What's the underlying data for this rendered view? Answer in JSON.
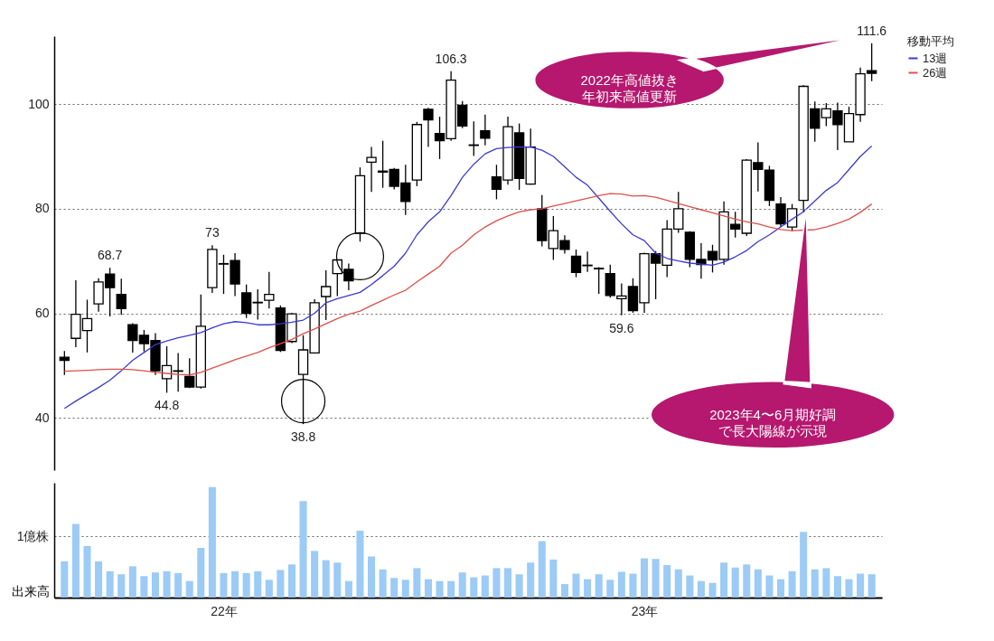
{
  "chart_data": [
    {
      "type": "candlestick",
      "categories": [
        null,
        null,
        null,
        null,
        null,
        null,
        null,
        null,
        null,
        null,
        null,
        null,
        null,
        null,
        null,
        null,
        null,
        null,
        null,
        null,
        null,
        null,
        null,
        null,
        null,
        null,
        null,
        null,
        null,
        null,
        null,
        null,
        null,
        null,
        null,
        null,
        null,
        null,
        null,
        null,
        null,
        null,
        null,
        null,
        null,
        null,
        null,
        null,
        null,
        null,
        null,
        null,
        null,
        null,
        null,
        null,
        null,
        null,
        null,
        null,
        null,
        null,
        null,
        null,
        null,
        null,
        null,
        null,
        null,
        null,
        null,
        null
      ],
      "tick_labels": "y",
      "ylim": [
        30,
        113
      ],
      "yticks": [
        40,
        60,
        80,
        100
      ],
      "grid": "y",
      "legend": "right",
      "legend_title": "移動平均",
      "ohlc": [
        [
          51.6,
          52.8,
          48.2,
          51.0
        ],
        [
          55.2,
          66.3,
          53.5,
          59.8
        ],
        [
          56.7,
          62.6,
          52.5,
          59.0
        ],
        [
          61.8,
          66.7,
          60.3,
          66.0
        ],
        [
          67.5,
          68.7,
          59.4,
          64.9
        ],
        [
          63.6,
          66.6,
          59.7,
          60.9
        ],
        [
          57.8,
          58.1,
          52.5,
          54.8
        ],
        [
          55.8,
          56.8,
          52.7,
          54.2
        ],
        [
          54.8,
          56.2,
          48.2,
          49.0
        ],
        [
          47.5,
          53.7,
          44.8,
          50.0
        ],
        [
          48.9,
          52.4,
          45.0,
          49.0
        ],
        [
          47.9,
          51.4,
          45.7,
          45.9
        ],
        [
          45.9,
          63.6,
          45.6,
          57.5
        ],
        [
          64.9,
          73,
          63.9,
          72.2
        ],
        [
          69.4,
          71.2,
          63.7,
          69.5
        ],
        [
          70.1,
          71.5,
          63.3,
          65.6
        ],
        [
          63.9,
          65.5,
          59.1,
          60.0
        ],
        [
          62.0,
          64.6,
          58.8,
          62.1
        ],
        [
          62.5,
          67.9,
          60.9,
          63.6
        ],
        [
          61.0,
          61.5,
          52.6,
          52.9
        ],
        [
          54.6,
          60.1,
          54.3,
          59.9
        ],
        [
          48.3,
          55.8,
          38.8,
          53.0
        ],
        [
          52.4,
          62.7,
          52.3,
          62.0
        ],
        [
          63.2,
          68.2,
          58.7,
          65.1
        ],
        [
          67.6,
          70.3,
          63.3,
          70.2
        ],
        [
          68.4,
          69.5,
          64.4,
          66.2
        ],
        [
          75.3,
          87.9,
          73.7,
          86.3
        ],
        [
          88.9,
          91.8,
          83.2,
          89.8
        ],
        [
          87.2,
          93.0,
          84.0,
          87.0
        ],
        [
          87.5,
          87.8,
          83.7,
          84.3
        ],
        [
          84.9,
          88.4,
          78.8,
          81.4
        ],
        [
          85.5,
          96.6,
          84.3,
          96.1
        ],
        [
          99.0,
          99.3,
          91.8,
          97.0
        ],
        [
          94.4,
          97.6,
          89.5,
          93.0
        ],
        [
          93.4,
          106.3,
          93.0,
          104.6
        ],
        [
          99.8,
          100.6,
          95.4,
          95.8
        ],
        [
          92.2,
          96.7,
          90.1,
          92.1
        ],
        [
          94.9,
          98.0,
          92.1,
          93.5
        ],
        [
          86.1,
          88.4,
          81.8,
          83.7
        ],
        [
          85.5,
          97.6,
          84.6,
          95.7
        ],
        [
          94.5,
          96.3,
          83.6,
          85.8
        ],
        [
          84.7,
          95.3,
          84.6,
          91.8
        ],
        [
          80.0,
          82.6,
          72.8,
          73.9
        ],
        [
          72.4,
          78.6,
          70.2,
          75.8
        ],
        [
          73.9,
          74.9,
          71.4,
          72.2
        ],
        [
          70.9,
          72.2,
          66.9,
          67.8
        ],
        [
          69.1,
          71.8,
          67.9,
          69.2
        ],
        [
          68.6,
          68.8,
          63.7,
          68.5
        ],
        [
          67.6,
          69.3,
          63.0,
          63.4
        ],
        [
          62.8,
          65.7,
          59.6,
          63.3
        ],
        [
          65.1,
          66.7,
          60.1,
          60.5
        ],
        [
          62.0,
          71.6,
          60.1,
          71.4
        ],
        [
          71.4,
          71.9,
          62.7,
          69.6
        ],
        [
          69.2,
          77.8,
          66.9,
          76.1
        ],
        [
          76.1,
          83.2,
          75.4,
          80.0
        ],
        [
          75.5,
          75.7,
          68.8,
          70.3
        ],
        [
          70.3,
          73.4,
          66.6,
          69.3
        ],
        [
          71.8,
          73.1,
          67.8,
          70.2
        ],
        [
          70.3,
          81.4,
          69.3,
          79.4
        ],
        [
          77.0,
          79.4,
          74.5,
          76.1
        ],
        [
          75.3,
          89.5,
          74.8,
          89.3
        ],
        [
          88.8,
          92.7,
          83.3,
          87.5
        ],
        [
          87.4,
          88.2,
          80.5,
          81.6
        ],
        [
          80.9,
          82.2,
          76.5,
          77.1
        ],
        [
          76.5,
          80.9,
          75.7,
          80.0
        ],
        [
          81.6,
          103.6,
          79.3,
          103.4
        ],
        [
          99.1,
          100.5,
          92.8,
          95.4
        ],
        [
          97.4,
          100.2,
          95.8,
          99.1
        ],
        [
          98.7,
          100.3,
          91.2,
          96.1
        ],
        [
          92.8,
          99.5,
          92.8,
          98.2
        ],
        [
          98.0,
          107.0,
          96.6,
          105.8
        ],
        [
          106.4,
          111.6,
          104.4,
          105.9
        ]
      ],
      "series": [
        {
          "name": "13週",
          "type": "line",
          "color": "#3a3ad6",
          "values": [
            41.8,
            43.2,
            44.5,
            45.8,
            47.2,
            49.0,
            51.0,
            52.5,
            54.0,
            54.7,
            55.3,
            55.8,
            56.3,
            57.2,
            58.0,
            58.4,
            58.2,
            57.8,
            57.8,
            58.0,
            58.3,
            58.7,
            60.0,
            62.0,
            62.8,
            63.4,
            64.0,
            65.5,
            67.2,
            69.0,
            71.5,
            75.0,
            77.5,
            79.4,
            82.5,
            86.0,
            88.5,
            90.5,
            91.5,
            91.7,
            91.8,
            91.8,
            91.2,
            90.0,
            88.0,
            86.0,
            84.5,
            82.0,
            79.5,
            77.1,
            75.0,
            73.9,
            71.5,
            70.5,
            70.0,
            69.6,
            69.4,
            69.2,
            69.8,
            70.8,
            72.0,
            73.7,
            75.0,
            76.5,
            78.0,
            79.4,
            81.5,
            83.5,
            85.0,
            87.5,
            90.0,
            92.0
          ]
        },
        {
          "name": "26週",
          "type": "line",
          "color": "#e0504a",
          "values": [
            48.9,
            49.0,
            49.1,
            49.2,
            49.3,
            49.3,
            49.2,
            49.0,
            48.7,
            48.5,
            48.3,
            48.2,
            48.7,
            49.5,
            50.3,
            51.1,
            51.8,
            52.5,
            53.4,
            54.2,
            55.0,
            56.1,
            57.0,
            58.0,
            59.0,
            59.8,
            60.4,
            61.5,
            62.5,
            63.5,
            64.4,
            66.0,
            67.5,
            69.0,
            71.5,
            73.0,
            75.0,
            76.5,
            77.7,
            78.6,
            79.4,
            79.8,
            80.0,
            80.5,
            81.0,
            81.5,
            82.0,
            82.5,
            82.9,
            82.8,
            82.4,
            82.5,
            82.2,
            81.6,
            81.0,
            80.4,
            79.8,
            79.2,
            78.6,
            78.0,
            77.5,
            77.1,
            76.5,
            76.0,
            75.8,
            null,
            76.0,
            76.5,
            77.2,
            78.0,
            79.3,
            80.9
          ]
        }
      ],
      "annotations": [
        {
          "text": "68.7",
          "y": 68.7
        },
        {
          "text": "73",
          "y": 73
        },
        {
          "text": "44.8",
          "y": 44.8
        },
        {
          "text": "38.8",
          "y": 38.8
        },
        {
          "text": "106.3",
          "y": 106.3
        },
        {
          "text": "59.6",
          "y": 59.6
        },
        {
          "text": "111.6",
          "y": 111.6
        },
        "2022年高値抜き年初来高値更新",
        "2023年4〜6月期好調で長大陽線が示現"
      ]
    },
    {
      "type": "bar",
      "categories": [
        null,
        null,
        null,
        null,
        null,
        null,
        null,
        null,
        null,
        null,
        null,
        null,
        null,
        null,
        "22年",
        null,
        null,
        null,
        null,
        null,
        null,
        null,
        null,
        null,
        null,
        null,
        null,
        null,
        null,
        null,
        null,
        null,
        null,
        null,
        null,
        null,
        null,
        null,
        null,
        null,
        null,
        null,
        null,
        null,
        null,
        null,
        null,
        null,
        null,
        null,
        null,
        "23年",
        null,
        null,
        null,
        null,
        null,
        null,
        null,
        null,
        null,
        null,
        null,
        null,
        null,
        null,
        null,
        null,
        null,
        null,
        null,
        null
      ],
      "ylabel": "出来高",
      "ylim": [
        0,
        1.87
      ],
      "yticks": [
        {
          "value": 0,
          "label": null
        },
        {
          "value": 1,
          "label": "1億株"
        }
      ],
      "grid": "y",
      "color": "#9ccbf5",
      "values": [
        0.59,
        1.2,
        0.84,
        0.59,
        0.43,
        0.38,
        0.51,
        0.35,
        0.41,
        0.43,
        0.4,
        0.27,
        0.81,
        1.8,
        0.4,
        0.43,
        0.4,
        0.43,
        0.29,
        0.45,
        0.54,
        1.57,
        0.76,
        0.61,
        0.57,
        0.27,
        1.09,
        0.67,
        0.46,
        0.32,
        0.29,
        0.48,
        0.3,
        0.27,
        0.27,
        0.41,
        0.33,
        0.36,
        0.48,
        0.48,
        0.38,
        0.57,
        0.92,
        0.62,
        0.22,
        0.39,
        0.3,
        0.38,
        0.29,
        0.42,
        0.39,
        0.64,
        0.63,
        0.53,
        0.46,
        0.36,
        0.27,
        0.24,
        0.57,
        0.49,
        0.54,
        0.46,
        0.36,
        0.3,
        0.43,
        1.07,
        0.46,
        0.48,
        0.35,
        0.3,
        0.39,
        0.38
      ]
    }
  ]
}
